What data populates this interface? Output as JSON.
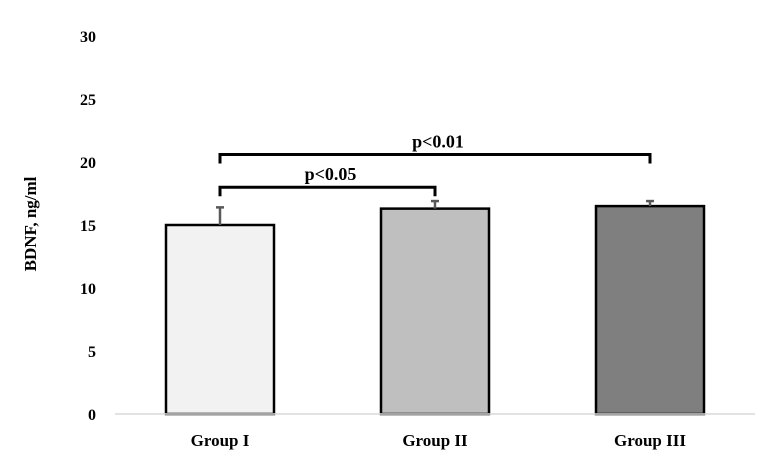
{
  "chart_data": {
    "type": "bar",
    "title": "",
    "xlabel": "",
    "ylabel": "BDNF, ng/ml",
    "ylim": [
      0,
      30
    ],
    "yticks": [
      0,
      5,
      10,
      15,
      20,
      25,
      30
    ],
    "grid": false,
    "legend": "none",
    "categories": [
      "Group I",
      "Group II",
      "Group III"
    ],
    "values": [
      15.0,
      16.3,
      16.5
    ],
    "errors": [
      1.4,
      0.6,
      0.4
    ],
    "colors": [
      "#f2f2f2",
      "#bfbfbf",
      "#7f7f7f"
    ],
    "annotations": [
      {
        "text": "p<0.05",
        "from": "Group I",
        "to": "Group II",
        "y": 18.0
      },
      {
        "text": "p<0.01",
        "from": "Group I",
        "to": "Group III",
        "y": 20.6
      }
    ]
  }
}
